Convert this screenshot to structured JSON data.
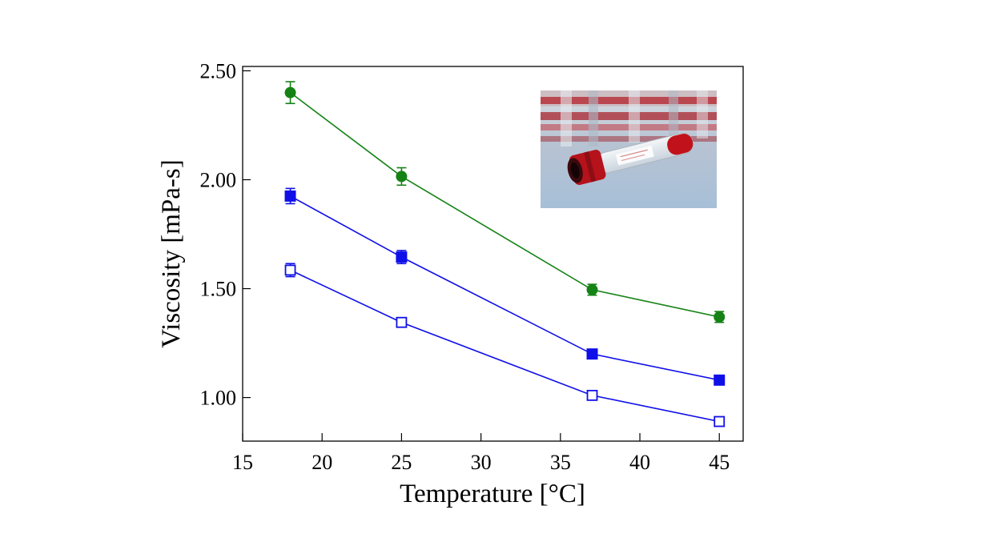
{
  "chart_data": {
    "type": "line",
    "xlabel": "Temperature [°C]",
    "ylabel": "Viscosity [mPa-s]",
    "xlim": [
      15,
      46.5
    ],
    "ylim": [
      0.8,
      2.52
    ],
    "x_ticks": [
      15,
      20,
      25,
      30,
      35,
      40,
      45
    ],
    "x_tick_labels": [
      "15",
      "20",
      "25",
      "30",
      "35",
      "40",
      "45"
    ],
    "y_ticks": [
      1.0,
      1.5,
      2.0,
      2.5
    ],
    "y_tick_labels": [
      "1.00",
      "1.50",
      "2.00",
      "2.50"
    ],
    "x": [
      18,
      25,
      37,
      45
    ],
    "series": [
      {
        "color": "#158215",
        "marker": "circle-filled",
        "values": [
          2.4,
          2.015,
          1.495,
          1.37
        ],
        "errors": [
          0.05,
          0.04,
          0.025,
          0.025
        ]
      },
      {
        "color": "#0f0fe8",
        "marker": "square-filled",
        "values": [
          1.925,
          1.645,
          1.2,
          1.08
        ],
        "errors": [
          0.035,
          0.03,
          0.015,
          0.012
        ]
      },
      {
        "color": "#0f0fe8",
        "marker": "square-open",
        "values": [
          1.585,
          1.345,
          1.01,
          0.89
        ],
        "errors": [
          0.03,
          0.02,
          0.012,
          0.01
        ]
      }
    ],
    "grid": false,
    "inset_image": "blood-sample-tube-photo"
  }
}
